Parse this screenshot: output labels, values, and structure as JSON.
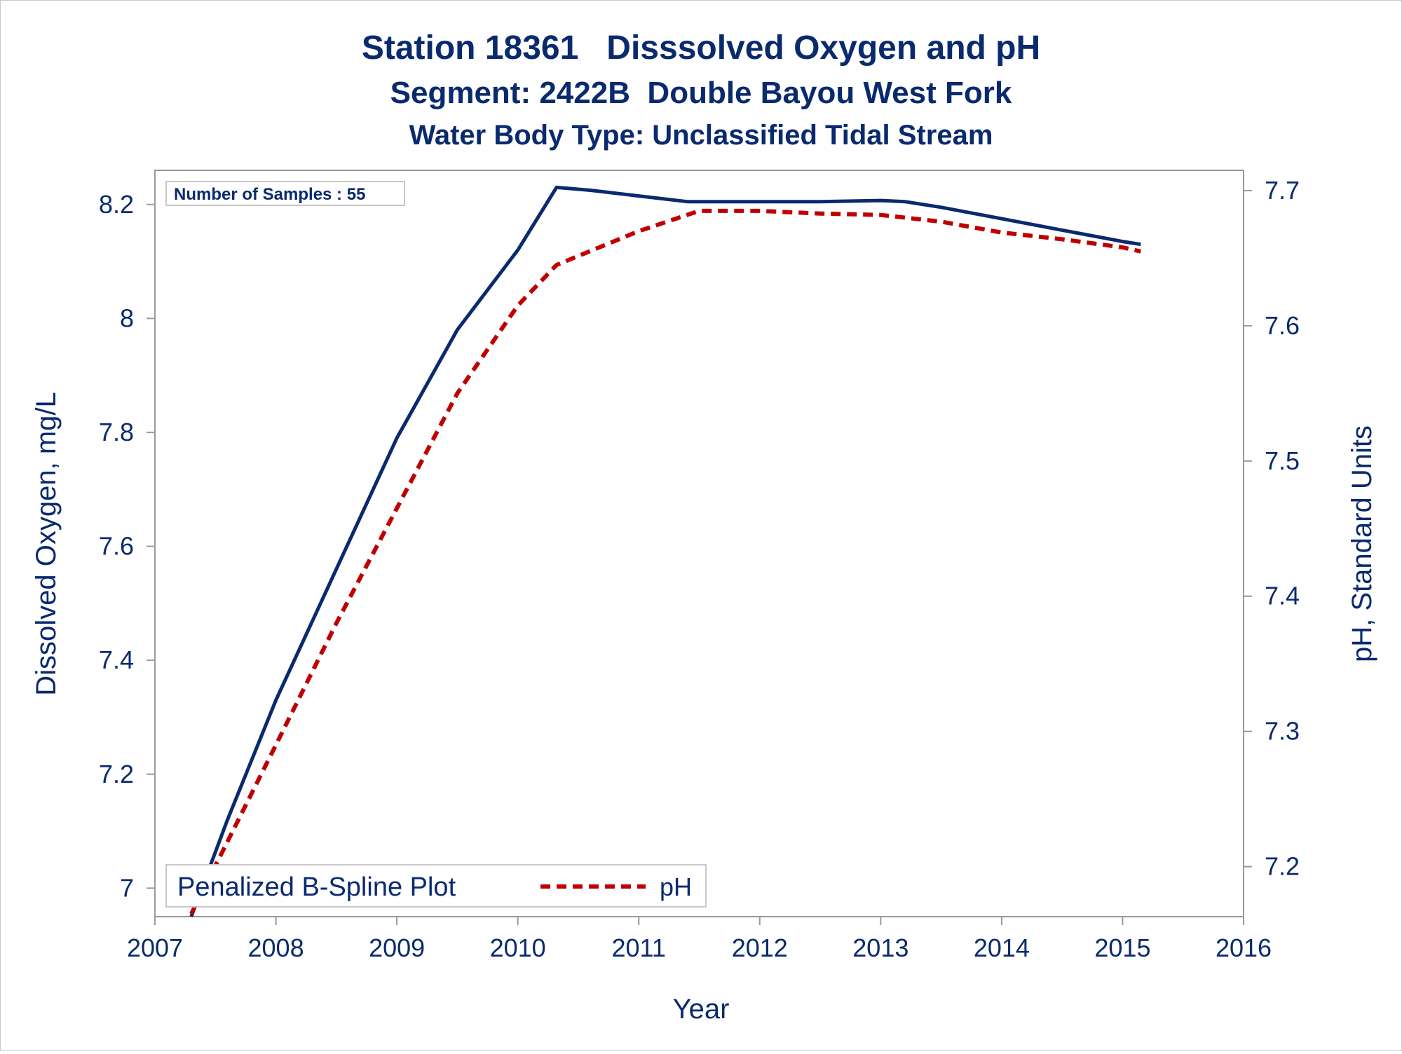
{
  "title_line1": "Station 18361   Disssolved Oxygen and pH",
  "title_line2": "Segment: 2422B  Double Bayou West Fork",
  "title_line3": "Water Body Type: Unclassified Tidal Stream",
  "inset_text": "Number of Samples : 55",
  "chart_data": {
    "type": "line",
    "xlabel": "Year",
    "ylabel_left": "Dissolved Oxygen, mg/L",
    "ylabel_right": "pH, Standard Units",
    "xlim": [
      2007,
      2016
    ],
    "ylim_left": [
      6.95,
      8.26
    ],
    "ylim_right": [
      7.163,
      7.715
    ],
    "x_ticks": [
      "2007",
      "2008",
      "2009",
      "2010",
      "2011",
      "2012",
      "2013",
      "2014",
      "2015",
      "2016"
    ],
    "y_left_ticks": [
      "7",
      "7.2",
      "7.4",
      "7.6",
      "7.8",
      "8",
      "8.2"
    ],
    "y_right_ticks": [
      "7.2",
      "7.3",
      "7.4",
      "7.5",
      "7.6",
      "7.7"
    ],
    "legend": {
      "title": "Penalized B-Spline Plot",
      "entries": [
        "pH"
      ]
    },
    "series": [
      {
        "axis": "left",
        "color": "#0a2a6e",
        "style": "solid",
        "points": [
          [
            2007.3,
            6.95
          ],
          [
            2007.6,
            7.12
          ],
          [
            2008.0,
            7.33
          ],
          [
            2008.5,
            7.56
          ],
          [
            2009.0,
            7.79
          ],
          [
            2009.5,
            7.98
          ],
          [
            2010.0,
            8.12
          ],
          [
            2010.32,
            8.23
          ],
          [
            2010.6,
            8.225
          ],
          [
            2011.0,
            8.215
          ],
          [
            2011.4,
            8.205
          ],
          [
            2011.6,
            8.205
          ],
          [
            2012.0,
            8.205
          ],
          [
            2012.5,
            8.205
          ],
          [
            2013.0,
            8.207
          ],
          [
            2013.2,
            8.205
          ],
          [
            2013.5,
            8.195
          ],
          [
            2014.0,
            8.175
          ],
          [
            2014.5,
            8.155
          ],
          [
            2015.0,
            8.135
          ],
          [
            2015.15,
            8.13
          ]
        ]
      },
      {
        "name": "pH",
        "axis": "right",
        "color": "#c00000",
        "style": "dashed",
        "points": [
          [
            2007.3,
            7.165
          ],
          [
            2008.0,
            7.29
          ],
          [
            2008.5,
            7.38
          ],
          [
            2009.0,
            7.465
          ],
          [
            2009.5,
            7.55
          ],
          [
            2010.0,
            7.615
          ],
          [
            2010.32,
            7.645
          ],
          [
            2011.0,
            7.67
          ],
          [
            2011.5,
            7.685
          ],
          [
            2012.0,
            7.685
          ],
          [
            2012.5,
            7.683
          ],
          [
            2013.0,
            7.682
          ],
          [
            2013.5,
            7.677
          ],
          [
            2014.0,
            7.669
          ],
          [
            2014.5,
            7.664
          ],
          [
            2015.0,
            7.658
          ],
          [
            2015.15,
            7.655
          ]
        ]
      }
    ]
  }
}
